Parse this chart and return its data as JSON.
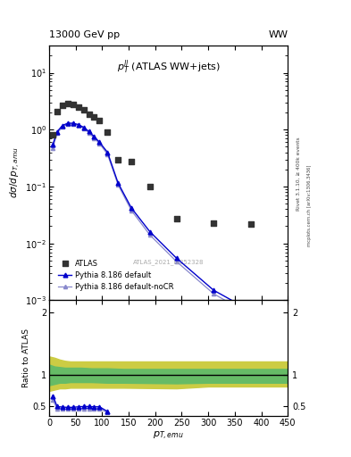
{
  "title_left": "13000 GeV pp",
  "title_right": "WW",
  "right_label1": "Rivet 3.1.10, ≥ 400k events",
  "right_label2": "mcplots.cern.ch [arXiv:1306.3436]",
  "watermark": "ATLAS_2021_I1852328",
  "plot_label": "$p_T^{ll}$ (ATLAS WW+jets)",
  "atlas_x": [
    7,
    15,
    25,
    35,
    45,
    55,
    65,
    75,
    85,
    95,
    110,
    130,
    155,
    190,
    240,
    310,
    380
  ],
  "atlas_y": [
    0.82,
    2.05,
    2.65,
    2.9,
    2.75,
    2.5,
    2.2,
    1.9,
    1.65,
    1.45,
    0.92,
    0.3,
    0.27,
    0.1,
    0.027,
    0.023,
    0.022
  ],
  "py_def_x": [
    7,
    15,
    25,
    35,
    45,
    55,
    65,
    75,
    85,
    95,
    110,
    130,
    155,
    190,
    240,
    310,
    380,
    430
  ],
  "py_def_y": [
    0.55,
    0.92,
    1.18,
    1.3,
    1.3,
    1.23,
    1.1,
    0.93,
    0.75,
    0.6,
    0.4,
    0.115,
    0.042,
    0.016,
    0.0055,
    0.0015,
    0.00065,
    0.00065
  ],
  "py_nocr_x": [
    7,
    15,
    25,
    35,
    45,
    55,
    65,
    75,
    85,
    95,
    110,
    130,
    155,
    190,
    240,
    310,
    380,
    430
  ],
  "py_nocr_y": [
    0.48,
    0.86,
    1.12,
    1.25,
    1.26,
    1.2,
    1.06,
    0.88,
    0.71,
    0.57,
    0.37,
    0.107,
    0.038,
    0.014,
    0.0048,
    0.0013,
    0.00055,
    0.00055
  ],
  "ratio_def_x": [
    7,
    15,
    25,
    35,
    45,
    55,
    65,
    75,
    85,
    95,
    110
  ],
  "ratio_def_y": [
    0.67,
    0.5,
    0.49,
    0.487,
    0.487,
    0.495,
    0.5,
    0.5,
    0.495,
    0.495,
    0.42
  ],
  "ratio_nocr_x": [
    7,
    15,
    25,
    35,
    45,
    55,
    65,
    75,
    85,
    95,
    110
  ],
  "ratio_nocr_y": [
    0.6,
    0.47,
    0.46,
    0.465,
    0.465,
    0.468,
    0.47,
    0.47,
    0.468,
    0.468,
    0.4
  ],
  "band_yellow_x": [
    0,
    10,
    20,
    30,
    40,
    60,
    80,
    110,
    140,
    240,
    300,
    450
  ],
  "band_yellow_y1": [
    0.75,
    0.77,
    0.79,
    0.79,
    0.8,
    0.8,
    0.8,
    0.8,
    0.8,
    0.79,
    0.82,
    0.82
  ],
  "band_yellow_y2": [
    1.3,
    1.28,
    1.25,
    1.23,
    1.22,
    1.22,
    1.22,
    1.22,
    1.22,
    1.22,
    1.22,
    1.22
  ],
  "band_green_x": [
    0,
    10,
    20,
    30,
    40,
    60,
    80,
    110,
    140,
    240,
    300,
    450
  ],
  "band_green_y1": [
    0.84,
    0.86,
    0.88,
    0.88,
    0.89,
    0.89,
    0.89,
    0.88,
    0.88,
    0.87,
    0.88,
    0.88
  ],
  "band_green_y2": [
    1.17,
    1.14,
    1.13,
    1.12,
    1.12,
    1.12,
    1.11,
    1.11,
    1.1,
    1.1,
    1.1,
    1.1
  ],
  "atlas_color": "#333333",
  "py_def_color": "#0000cc",
  "py_nocr_color": "#8888cc",
  "green_color": "#66bb66",
  "yellow_color": "#cccc44",
  "xlim": [
    0,
    450
  ],
  "ylim_main": [
    0.001,
    30
  ],
  "ylim_ratio": [
    0.35,
    2.2
  ]
}
